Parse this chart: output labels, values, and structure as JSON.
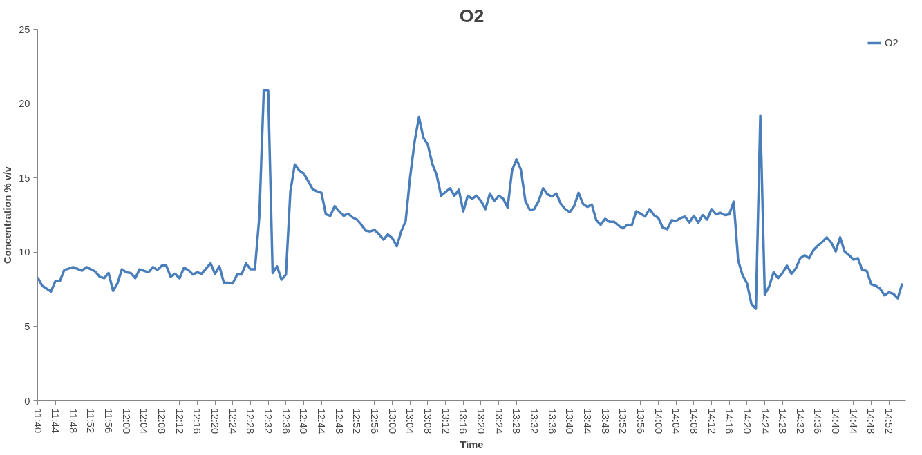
{
  "chart_data": {
    "type": "line",
    "title": "O2",
    "xlabel": "Time",
    "ylabel": "Concentration % v/v",
    "x": [
      11.6667,
      11.6833,
      11.7167,
      11.7333,
      11.75,
      11.7667,
      11.8,
      11.8333,
      11.85,
      11.8833,
      11.9,
      11.9167,
      11.9333,
      11.95,
      11.9667,
      11.9833,
      12.0,
      12.0167,
      12.0333,
      12.05,
      12.0833,
      12.1,
      12.1167,
      12.1333,
      12.15,
      12.1667,
      12.1833,
      12.2,
      12.2167,
      12.2333,
      12.25,
      12.2667,
      12.2833,
      12.3,
      12.3167,
      12.3333,
      12.35,
      12.3667,
      12.3833,
      12.4,
      12.4167,
      12.4333,
      12.45,
      12.4667,
      12.4833,
      12.5,
      12.5167,
      12.5333,
      12.55,
      12.5667,
      12.5833,
      12.6,
      12.6167,
      12.6333,
      12.65,
      12.6667,
      12.6833,
      12.7,
      12.7167,
      12.7333,
      12.75,
      12.7667,
      12.7833,
      12.8,
      12.8167,
      12.8333,
      12.85,
      12.8667,
      12.8833,
      12.9,
      12.9167,
      12.9333,
      12.95,
      12.9667,
      12.9833,
      13.0,
      13.0167,
      13.0333,
      13.05,
      13.0667,
      13.0833,
      13.1,
      13.1167,
      13.1333,
      13.15,
      13.1667,
      13.1833,
      13.2,
      13.2167,
      13.2333,
      13.25,
      13.2667,
      13.2833,
      13.3,
      13.3167,
      13.3333,
      13.35,
      13.3667,
      13.3833,
      13.4,
      13.4167,
      13.4333,
      13.45,
      13.4667,
      13.4833,
      13.5,
      13.5167,
      13.5333,
      13.55,
      13.5667,
      13.5833,
      13.6,
      13.6167,
      13.6333,
      13.65,
      13.6667,
      13.6833,
      13.7,
      13.7167,
      13.7333,
      13.75,
      13.7667,
      13.7833,
      13.8,
      13.8167,
      13.8333,
      13.85,
      13.8667,
      13.8833,
      13.9,
      13.9167,
      13.9333,
      13.95,
      13.9667,
      13.9833,
      14.0,
      14.0167,
      14.0333,
      14.05,
      14.0667,
      14.0833,
      14.1,
      14.1167,
      14.1333,
      14.15,
      14.1667,
      14.1833,
      14.2,
      14.2167,
      14.2333,
      14.25,
      14.2667,
      14.2833,
      14.3,
      14.3167,
      14.3333,
      14.35,
      14.3667,
      14.3833,
      14.4,
      14.4167,
      14.4333,
      14.45,
      14.4667,
      14.4833,
      14.5,
      14.5167,
      14.5333,
      14.55,
      14.5667,
      14.5833,
      14.6,
      14.6167,
      14.6333,
      14.65,
      14.6667,
      14.6833,
      14.7,
      14.7167,
      14.7333,
      14.75,
      14.7667,
      14.7833,
      14.8,
      14.8167,
      14.8333,
      14.85,
      14.8667,
      14.8833,
      14.9,
      14.9167
    ],
    "series": [
      {
        "name": "O2",
        "color": "#4a7ebb",
        "values": [
          8.3,
          7.75,
          7.35,
          8.05,
          8.05,
          8.8,
          9.0,
          8.75,
          9.0,
          8.7,
          8.35,
          8.25,
          8.6,
          7.4,
          7.9,
          8.85,
          8.65,
          8.6,
          8.25,
          8.85,
          8.65,
          9.0,
          8.8,
          9.1,
          9.1,
          8.35,
          8.55,
          8.25,
          8.95,
          8.8,
          8.5,
          8.65,
          8.55,
          8.9,
          9.25,
          8.55,
          9.05,
          7.95,
          7.95,
          7.9,
          8.5,
          8.5,
          9.25,
          8.85,
          8.85,
          12.4,
          20.9,
          20.9,
          8.6,
          9.05,
          8.15,
          8.5,
          14.1,
          15.9,
          15.5,
          15.3,
          14.8,
          14.25,
          14.1,
          14.0,
          12.55,
          12.45,
          13.1,
          12.75,
          12.45,
          12.6,
          12.35,
          12.2,
          11.85,
          11.45,
          11.4,
          11.5,
          11.2,
          10.85,
          11.2,
          10.95,
          10.4,
          11.4,
          12.1,
          15.05,
          17.4,
          19.1,
          17.7,
          17.25,
          15.95,
          15.2,
          13.8,
          14.05,
          14.3,
          13.8,
          14.2,
          12.75,
          13.8,
          13.6,
          13.8,
          13.45,
          12.9,
          13.95,
          13.45,
          13.8,
          13.6,
          13.0,
          15.5,
          16.25,
          15.55,
          13.45,
          12.85,
          12.9,
          13.45,
          14.3,
          13.9,
          13.75,
          13.95,
          13.25,
          12.9,
          12.7,
          13.1,
          14.0,
          13.25,
          13.05,
          13.2,
          12.15,
          11.85,
          12.25,
          12.05,
          12.05,
          11.8,
          11.6,
          11.85,
          11.8,
          12.75,
          12.6,
          12.4,
          12.9,
          12.5,
          12.3,
          11.65,
          11.55,
          12.15,
          12.1,
          12.3,
          12.4,
          12.0,
          12.45,
          12.0,
          12.5,
          12.2,
          12.9,
          12.55,
          12.65,
          12.5,
          12.55,
          13.4,
          9.45,
          8.45,
          7.9,
          6.5,
          6.2,
          19.2,
          7.15,
          7.7,
          8.65,
          8.25,
          8.6,
          9.1,
          8.55,
          8.9,
          9.6,
          9.8,
          9.6,
          10.15,
          10.45,
          10.7,
          11.0,
          10.65,
          10.05,
          11.0,
          10.05,
          9.8,
          9.5,
          9.6,
          8.8,
          8.75,
          7.85,
          7.75,
          7.55,
          7.1,
          7.3,
          7.2,
          6.9,
          7.9
        ]
      }
    ],
    "xlim": [
      11.6667,
      14.93
    ],
    "xticks": [
      {
        "value": 11.6667,
        "label": "11:40"
      },
      {
        "value": 11.7333,
        "label": "11:44"
      },
      {
        "value": 11.8,
        "label": "11:48"
      },
      {
        "value": 11.8667,
        "label": "11:52"
      },
      {
        "value": 11.9333,
        "label": "11:56"
      },
      {
        "value": 12.0,
        "label": "12:00"
      },
      {
        "value": 12.0667,
        "label": "12:04"
      },
      {
        "value": 12.1333,
        "label": "12:08"
      },
      {
        "value": 12.2,
        "label": "12:12"
      },
      {
        "value": 12.2667,
        "label": "12:16"
      },
      {
        "value": 12.3333,
        "label": "12:20"
      },
      {
        "value": 12.4,
        "label": "12:24"
      },
      {
        "value": 12.4667,
        "label": "12:28"
      },
      {
        "value": 12.5333,
        "label": "12:32"
      },
      {
        "value": 12.6,
        "label": "12:36"
      },
      {
        "value": 12.6667,
        "label": "12:40"
      },
      {
        "value": 12.7333,
        "label": "12:44"
      },
      {
        "value": 12.8,
        "label": "12:48"
      },
      {
        "value": 12.8667,
        "label": "12:52"
      },
      {
        "value": 12.9333,
        "label": "12:56"
      },
      {
        "value": 13.0,
        "label": "13:00"
      },
      {
        "value": 13.0667,
        "label": "13:04"
      },
      {
        "value": 13.1333,
        "label": "13:08"
      },
      {
        "value": 13.2,
        "label": "13:12"
      },
      {
        "value": 13.2667,
        "label": "13:16"
      },
      {
        "value": 13.3333,
        "label": "13:20"
      },
      {
        "value": 13.4,
        "label": "13:24"
      },
      {
        "value": 13.4667,
        "label": "13:28"
      },
      {
        "value": 13.5333,
        "label": "13:32"
      },
      {
        "value": 13.6,
        "label": "13:36"
      },
      {
        "value": 13.6667,
        "label": "13:40"
      },
      {
        "value": 13.7333,
        "label": "13:44"
      },
      {
        "value": 13.8,
        "label": "13:48"
      },
      {
        "value": 13.8667,
        "label": "13:52"
      },
      {
        "value": 13.9333,
        "label": "13:56"
      },
      {
        "value": 14.0,
        "label": "14:00"
      },
      {
        "value": 14.0667,
        "label": "14:04"
      },
      {
        "value": 14.1333,
        "label": "14:08"
      },
      {
        "value": 14.2,
        "label": "14:12"
      },
      {
        "value": 14.2667,
        "label": "14:16"
      },
      {
        "value": 14.3333,
        "label": "14:20"
      },
      {
        "value": 14.4,
        "label": "14:24"
      },
      {
        "value": 14.4667,
        "label": "14:28"
      },
      {
        "value": 14.5333,
        "label": "14:32"
      },
      {
        "value": 14.6,
        "label": "14:36"
      },
      {
        "value": 14.6667,
        "label": "14:40"
      },
      {
        "value": 14.7333,
        "label": "14:44"
      },
      {
        "value": 14.8,
        "label": "14:48"
      },
      {
        "value": 14.8667,
        "label": "14:52"
      }
    ],
    "ylim": [
      0,
      25
    ],
    "yticks": [
      0,
      5,
      10,
      15,
      20,
      25
    ],
    "grid": false,
    "legend": "top right",
    "marker": "none",
    "line_style": "solid"
  }
}
